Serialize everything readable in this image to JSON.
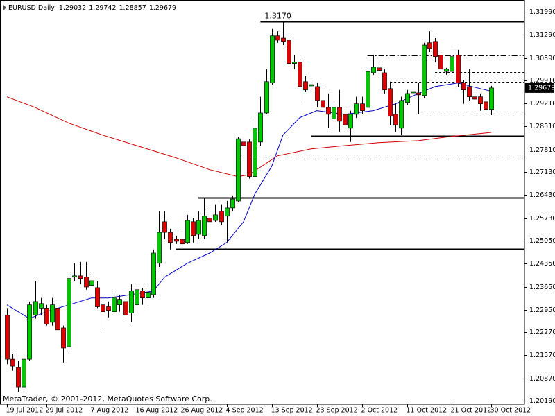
{
  "chart_data": {
    "type": "candlestick",
    "title": "EURUSD,Daily",
    "footer": "MetaTrader, © 2001-2012, MetaQuotes Software Corp.",
    "up_color": "#00c800",
    "down_color": "#e00000",
    "open": [
      1.2279,
      1.2145,
      1.212,
      1.2061,
      1.2145,
      1.2279,
      1.23,
      1.23,
      1.2257,
      1.23,
      1.224,
      1.2183,
      1.2394,
      1.2398,
      1.2394,
      1.2369,
      1.2362,
      1.231,
      1.2304,
      1.2289,
      1.231,
      1.232,
      1.2285,
      1.231,
      1.2352,
      1.2331,
      1.2341,
      1.2436,
      1.2562,
      1.253,
      1.2509,
      1.2509,
      1.2499,
      1.2562,
      1.2524,
      1.252,
      1.2573,
      1.2566,
      1.2594,
      1.2579,
      1.2604,
      1.2625,
      1.2804,
      1.2804,
      1.2699,
      1.2804,
      1.2892,
      1.2983,
      1.3126,
      1.3119,
      1.3113,
      1.3042,
      1.3046,
      1.2987,
      1.2974,
      1.2972,
      1.293,
      1.2909,
      1.2874,
      1.2909,
      1.2888,
      1.2846,
      1.2888,
      1.292,
      1.2909,
      1.3014,
      1.3029,
      1.3014,
      1.2966,
      1.2888,
      1.2846,
      1.2924,
      1.2953,
      1.2953,
      1.2945,
      1.3105,
      1.3109,
      1.3067,
      1.3018,
      1.3018,
      1.3067,
      1.2983,
      1.2972,
      1.2941,
      1.2941,
      1.2926,
      1.29032
    ],
    "high": [
      1.23,
      1.216,
      1.2141,
      1.2158,
      1.232,
      1.2383,
      1.2331,
      1.231,
      1.2331,
      1.232,
      1.2247,
      1.2404,
      1.2436,
      1.244,
      1.244,
      1.2404,
      1.2383,
      1.2331,
      1.232,
      1.2352,
      1.2341,
      1.2341,
      1.2373,
      1.2373,
      1.2362,
      1.2362,
      1.2478,
      1.2594,
      1.2594,
      1.2541,
      1.252,
      1.253,
      1.2583,
      1.2573,
      1.2594,
      1.2636,
      1.2604,
      1.2615,
      1.2615,
      1.2625,
      1.2642,
      1.2819,
      1.2814,
      1.2814,
      1.2878,
      1.2941,
      1.3025,
      1.3147,
      1.314,
      1.317,
      1.3119,
      1.3067,
      1.3056,
      1.3004,
      1.2987,
      1.2983,
      1.2972,
      1.2951,
      1.292,
      1.2962,
      1.2909,
      1.2899,
      1.2941,
      1.2941,
      1.3029,
      1.3067,
      1.3035,
      1.3025,
      1.2987,
      1.292,
      1.2941,
      1.2962,
      1.2987,
      1.2983,
      1.3105,
      1.314,
      1.3119,
      1.3077,
      1.3029,
      1.3084,
      1.3084,
      1.2993,
      1.3025,
      1.2951,
      1.2951,
      1.2941,
      1.29742
    ],
    "low": [
      1.213,
      1.211,
      1.2046,
      1.2053,
      1.2141,
      1.2268,
      1.2279,
      1.2247,
      1.2247,
      1.2226,
      1.2135,
      1.2173,
      1.2383,
      1.2373,
      1.2356,
      1.2341,
      1.23,
      1.224,
      1.2272,
      1.2279,
      1.2289,
      1.2268,
      1.2257,
      1.23,
      1.231,
      1.23,
      1.2331,
      1.2425,
      1.251,
      1.2478,
      1.2495,
      1.2488,
      1.2495,
      1.2499,
      1.2509,
      1.2509,
      1.2552,
      1.2562,
      1.2552,
      1.2499,
      1.2594,
      1.2621,
      1.2762,
      1.2693,
      1.2693,
      1.2793,
      1.2888,
      1.2978,
      1.3105,
      1.3098,
      1.3025,
      1.3025,
      1.292,
      1.2957,
      1.2962,
      1.2909,
      1.2888,
      1.2846,
      1.2831,
      1.2835,
      1.2835,
      1.2804,
      1.2877,
      1.2888,
      1.2899,
      1.3008,
      1.3014,
      1.2951,
      1.2856,
      1.2835,
      1.2825,
      1.2915,
      1.2945,
      1.2888,
      1.2936,
      1.3077,
      1.3046,
      1.3014,
      1.3008,
      1.3014,
      1.2972,
      1.292,
      1.293,
      1.2888,
      1.2899,
      1.2888,
      1.28857
    ],
    "close": [
      1.2145,
      1.2124,
      1.2061,
      1.2145,
      1.231,
      1.232,
      1.2314,
      1.2251,
      1.231,
      1.2234,
      1.2179,
      1.239,
      1.2398,
      1.239,
      1.2364,
      1.2383,
      1.2304,
      1.2289,
      1.2293,
      1.2331,
      1.2327,
      1.2279,
      1.2352,
      1.2356,
      1.2331,
      1.2348,
      1.2467,
      1.253,
      1.253,
      1.2499,
      1.2503,
      1.2495,
      1.2566,
      1.252,
      1.2566,
      1.2579,
      1.2562,
      1.2583,
      1.2562,
      1.2604,
      1.2631,
      1.2814,
      1.2793,
      1.2699,
      1.2846,
      1.2892,
      1.2987,
      1.3126,
      1.3113,
      1.3109,
      1.3042,
      1.3046,
      1.2972,
      1.2962,
      1.2978,
      1.293,
      1.2909,
      1.2888,
      1.2909,
      1.2867,
      1.2856,
      1.2888,
      1.292,
      1.2899,
      1.3018,
      1.3031,
      1.3021,
      1.2962,
      1.2882,
      1.2856,
      1.293,
      1.2951,
      1.2957,
      1.2947,
      1.3098,
      1.3088,
      1.3063,
      1.3025,
      1.3025,
      1.3063,
      1.2983,
      1.2962,
      1.2941,
      1.2934,
      1.292,
      1.2903,
      1.29679
    ],
    "lines": [
      {
        "color": "#d00000",
        "x": [
          0,
          5,
          11,
          17,
          23,
          30,
          36,
          41,
          43,
          48,
          54,
          60,
          66,
          73,
          79,
          86
        ],
        "values": [
          1.2941,
          1.2909,
          1.2861,
          1.2825,
          1.2793,
          1.2756,
          1.272,
          1.2699,
          1.2705,
          1.2762,
          1.2783,
          1.2793,
          1.2802,
          1.2808,
          1.2821,
          1.2833
        ]
      },
      {
        "color": "#0000c8",
        "x": [
          0,
          4,
          7,
          11,
          15,
          18,
          22,
          26,
          28,
          32,
          36,
          39,
          42,
          44,
          47,
          49,
          52,
          55,
          60,
          65,
          69,
          73,
          76,
          80,
          84,
          86
        ],
        "values": [
          1.231,
          1.2268,
          1.2289,
          1.231,
          1.2331,
          1.2331,
          1.2341,
          1.2352,
          1.2394,
          1.2436,
          1.2467,
          1.2499,
          1.2562,
          1.2646,
          1.273,
          1.2825,
          1.2878,
          1.2899,
          1.2888,
          1.2899,
          1.292,
          1.2951,
          1.2972,
          1.2983,
          1.2966,
          1.2958
        ]
      }
    ],
    "levels": [
      {
        "price": {
          "value": 1.317,
          "label": "1.3170"
        },
        "start": 45,
        "style": "solid"
      },
      {
        "price": 1.3067,
        "start": 64,
        "style": "dashdot"
      },
      {
        "price": 1.3016,
        "start": 76,
        "style": "dashed"
      },
      {
        "price": 1.2987,
        "start": 68,
        "style": "dashed"
      },
      {
        "price": 1.289,
        "start": 73,
        "style": "dashed"
      },
      {
        "price": 1.2823,
        "start": 54,
        "style": "solid"
      },
      {
        "price": 1.2753,
        "start": 43,
        "style": "dashdot"
      },
      {
        "price": 1.2636,
        "start": 34,
        "style": "solid"
      },
      {
        "price": 1.248,
        "start": 30,
        "style": "solid"
      }
    ],
    "xlim": [
      -1.23,
      91.87
    ],
    "ylim": [
      1.20085,
      1.32306
    ],
    "xticks": [
      {
        "value": 0,
        "label": "19 Jul 2012"
      },
      {
        "value": 7,
        "label": "29 Jul 2012"
      },
      {
        "value": 15,
        "label": "7 Aug 2012"
      },
      {
        "value": 23,
        "label": "16 Aug 2012"
      },
      {
        "value": 31,
        "label": "26 Aug 2012"
      },
      {
        "value": 39,
        "label": "4 Sep 2012"
      },
      {
        "value": 47,
        "label": "13 Sep 2012"
      },
      {
        "value": 55,
        "label": "23 Sep 2012"
      },
      {
        "value": 63,
        "label": "2 Oct 2012"
      },
      {
        "value": 71,
        "label": "11 Oct 2012"
      },
      {
        "value": 79,
        "label": "21 Oct 2012"
      },
      {
        "value": 86,
        "label": "30 Oct 2012"
      }
    ],
    "yticks": [
      {
        "value": 1.3199,
        "label": "1.31990"
      },
      {
        "value": 1.3129,
        "label": "1.31290"
      },
      {
        "value": 1.3059,
        "label": "1.30590"
      },
      {
        "value": 1.2991,
        "label": "1.29910"
      },
      {
        "value": 1.2921,
        "label": "1.29210"
      },
      {
        "value": 1.2851,
        "label": "1.28510"
      },
      {
        "value": 1.2781,
        "label": "1.27810"
      },
      {
        "value": 1.2713,
        "label": "1.27130"
      },
      {
        "value": 1.2643,
        "label": "1.26430"
      },
      {
        "value": 1.2573,
        "label": "1.25730"
      },
      {
        "value": 1.2505,
        "label": "1.25050"
      },
      {
        "value": 1.2435,
        "label": "1.24350"
      },
      {
        "value": 1.2365,
        "label": "1.23650"
      },
      {
        "value": 1.2295,
        "label": "1.22950"
      },
      {
        "value": 1.2227,
        "label": "1.22270"
      },
      {
        "value": 1.2157,
        "label": "1.21570"
      },
      {
        "value": 1.2087,
        "label": "1.20870"
      },
      {
        "value": 1.2019,
        "label": "1.20190"
      }
    ]
  }
}
